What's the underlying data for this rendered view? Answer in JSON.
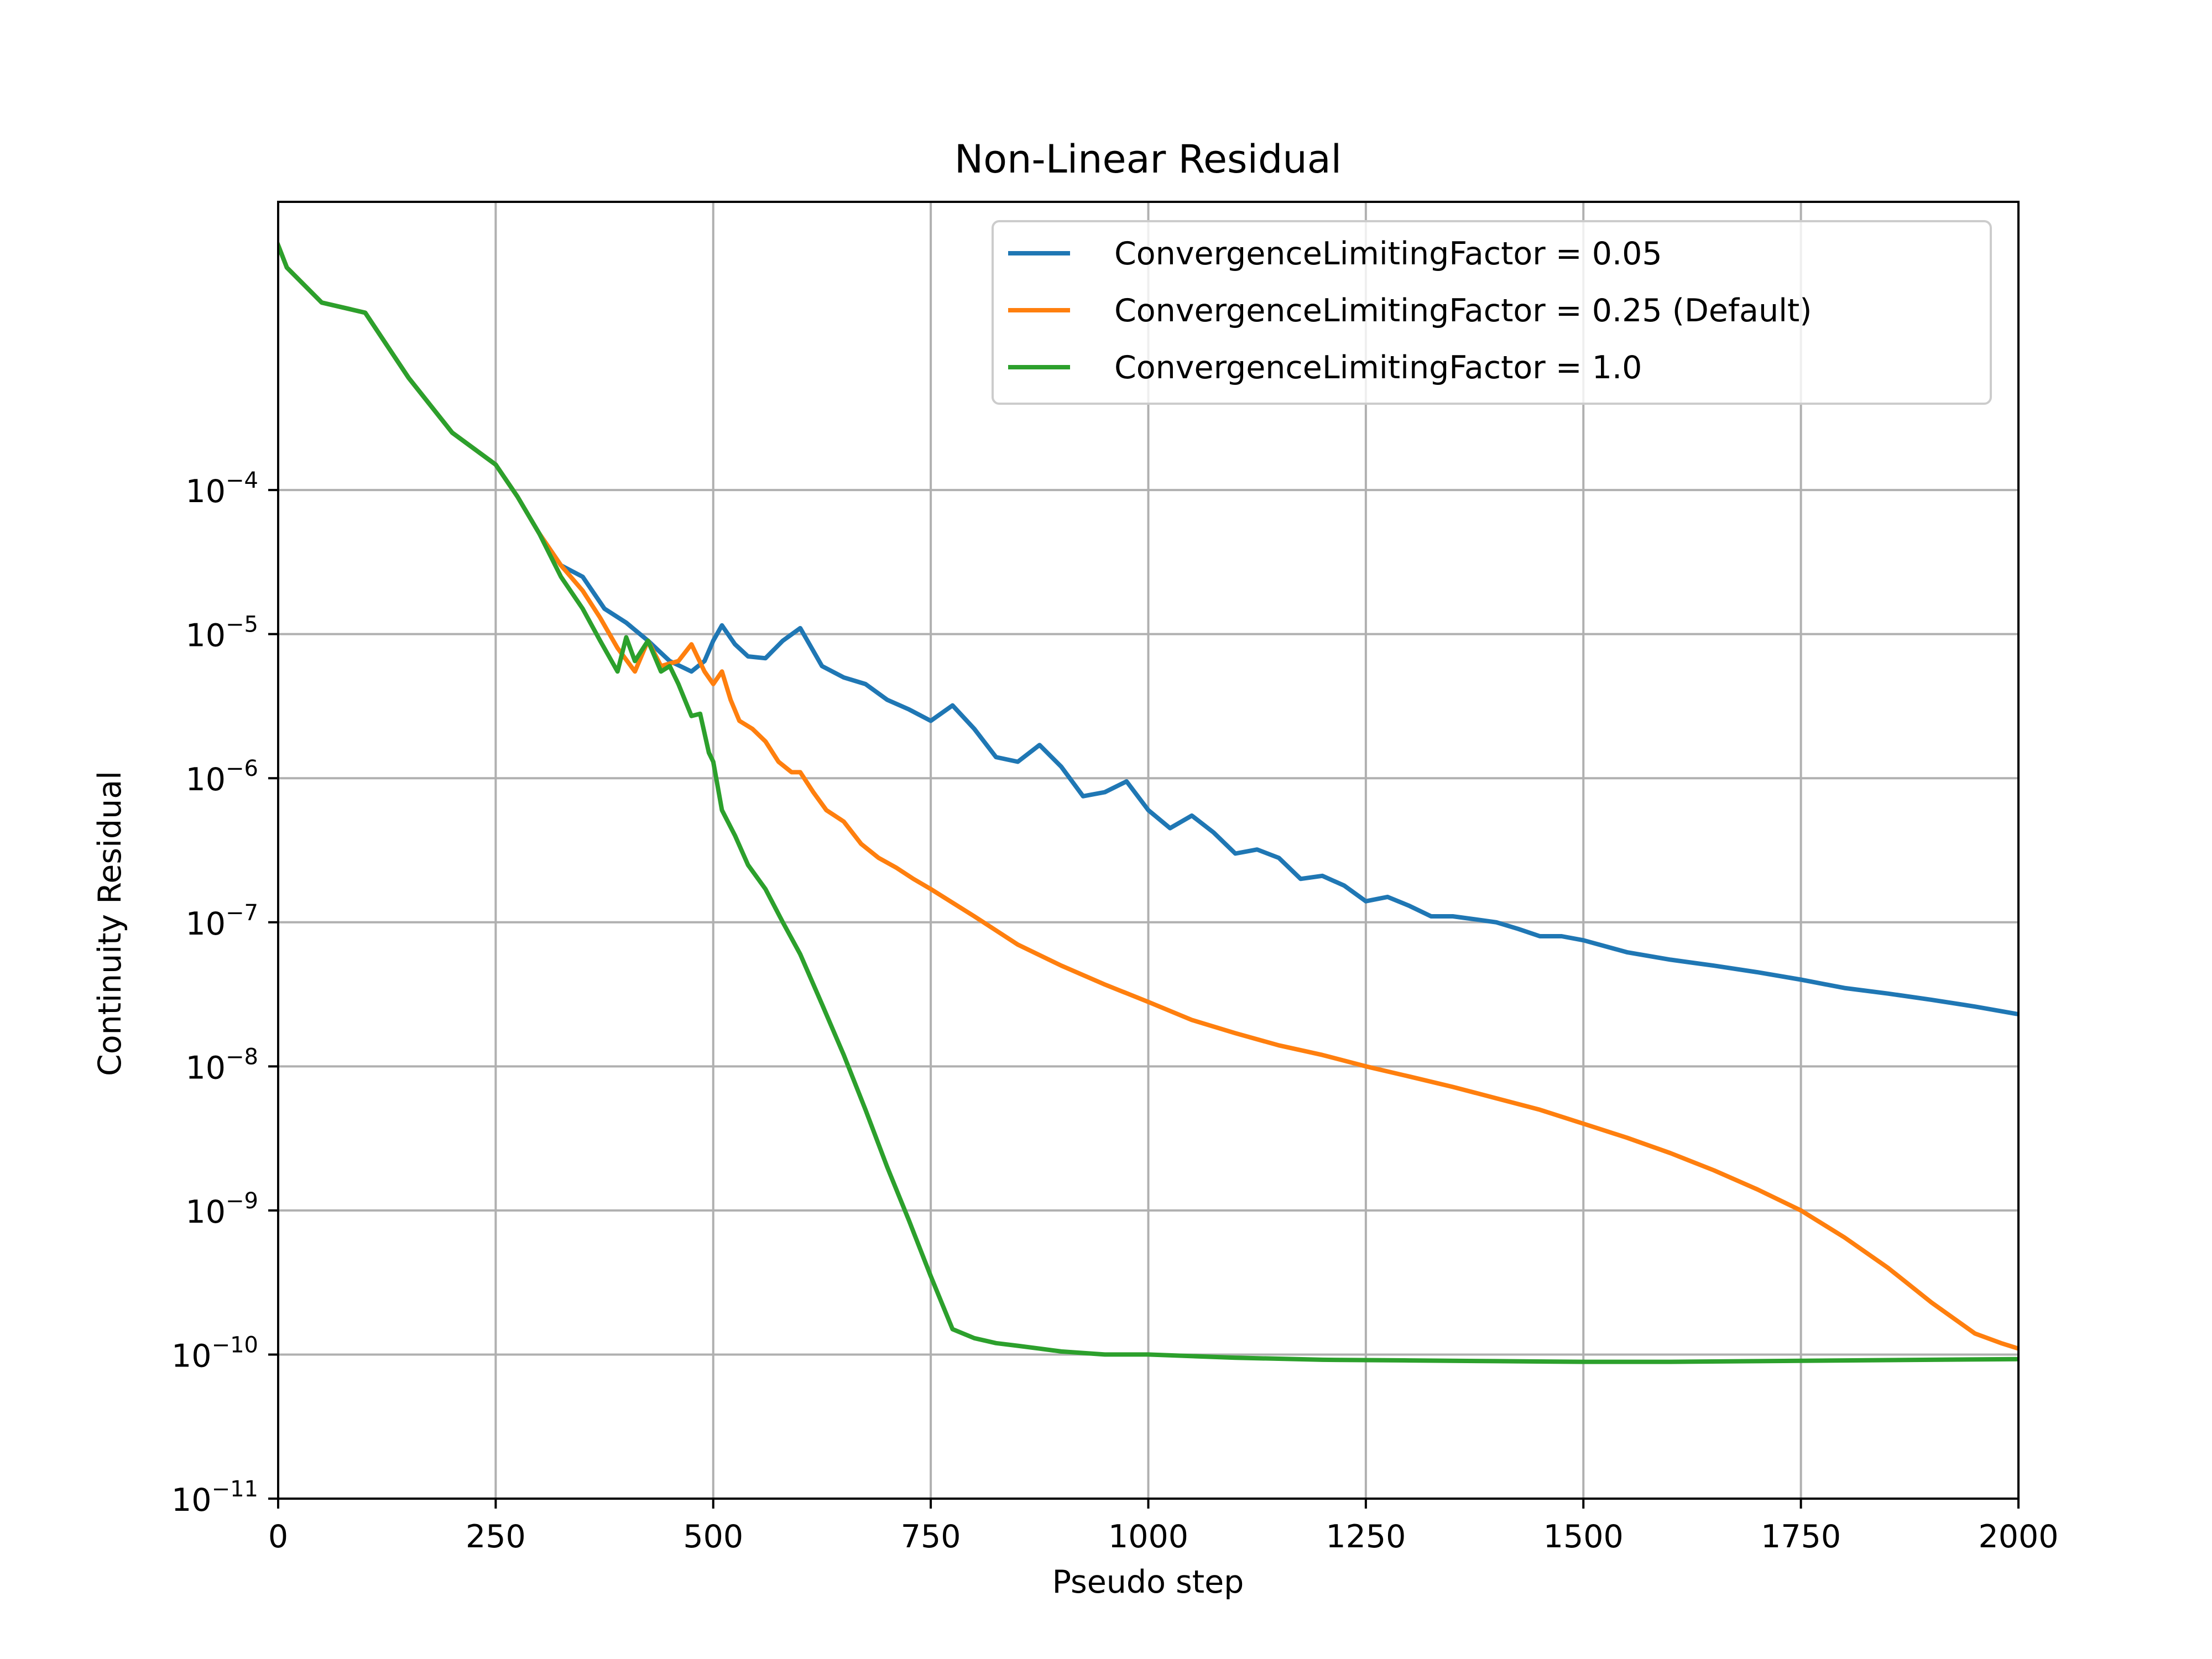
{
  "chart_data": {
    "type": "line",
    "title": "Non-Linear Residual",
    "xlabel": "Pseudo step",
    "ylabel": "Continuity Residual",
    "xlim": [
      0,
      2000
    ],
    "ylim": [
      1e-11,
      0.01
    ],
    "yscale": "log",
    "grid": true,
    "legend_position": "top-right",
    "x_ticks": [
      0,
      250,
      500,
      750,
      1000,
      1250,
      1500,
      1750,
      2000
    ],
    "x_tick_labels": [
      "0",
      "250",
      "500",
      "750",
      "1000",
      "1250",
      "1500",
      "1750",
      "2000"
    ],
    "y_ticks": [
      -11,
      -10,
      -9,
      -8,
      -7,
      -6,
      -5,
      -4
    ],
    "y_tick_labels": [
      {
        "base": "10",
        "exp": "−11"
      },
      {
        "base": "10",
        "exp": "−10"
      },
      {
        "base": "10",
        "exp": "−9"
      },
      {
        "base": "10",
        "exp": "−8"
      },
      {
        "base": "10",
        "exp": "−7"
      },
      {
        "base": "10",
        "exp": "−6"
      },
      {
        "base": "10",
        "exp": "−5"
      },
      {
        "base": "10",
        "exp": "−4"
      }
    ],
    "series": [
      {
        "name": "ConvergenceLimitingFactor = 0.05",
        "color": "#1f77b4",
        "x": [
          0,
          10,
          50,
          100,
          150,
          200,
          250,
          275,
          300,
          325,
          350,
          375,
          400,
          425,
          450,
          475,
          490,
          500,
          510,
          525,
          540,
          560,
          580,
          600,
          625,
          650,
          675,
          700,
          725,
          750,
          775,
          800,
          825,
          850,
          875,
          900,
          925,
          950,
          975,
          1000,
          1025,
          1050,
          1075,
          1100,
          1125,
          1150,
          1175,
          1200,
          1225,
          1250,
          1275,
          1300,
          1325,
          1350,
          1375,
          1400,
          1425,
          1450,
          1475,
          1500,
          1550,
          1600,
          1650,
          1700,
          1750,
          1800,
          1850,
          1900,
          1950,
          2000
        ],
        "y": [
          0.005,
          0.0035,
          0.002,
          0.0017,
          0.0006,
          0.00025,
          0.00015,
          9e-05,
          5e-05,
          3e-05,
          2.5e-05,
          1.5e-05,
          1.2e-05,
          9e-06,
          6.5e-06,
          5.5e-06,
          6.5e-06,
          9e-06,
          1.15e-05,
          8.5e-06,
          7e-06,
          6.8e-06,
          9e-06,
          1.1e-05,
          6e-06,
          5e-06,
          4.5e-06,
          3.5e-06,
          3e-06,
          2.5e-06,
          3.2e-06,
          2.2e-06,
          1.4e-06,
          1.3e-06,
          1.7e-06,
          1.2e-06,
          7.5e-07,
          8e-07,
          9.5e-07,
          6e-07,
          4.5e-07,
          5.5e-07,
          4.2e-07,
          3e-07,
          3.2e-07,
          2.8e-07,
          2e-07,
          2.1e-07,
          1.8e-07,
          1.4e-07,
          1.5e-07,
          1.3e-07,
          1.1e-07,
          1.1e-07,
          1.05e-07,
          1e-07,
          9e-08,
          8e-08,
          8e-08,
          7.5e-08,
          6.2e-08,
          5.5e-08,
          5e-08,
          4.5e-08,
          4e-08,
          3.5e-08,
          3.2e-08,
          2.9e-08,
          2.6e-08,
          2.3e-08
        ]
      },
      {
        "name": "ConvergenceLimitingFactor = 0.25 (Default)",
        "color": "#ff7f0e",
        "x": [
          0,
          10,
          50,
          100,
          150,
          200,
          250,
          275,
          300,
          325,
          350,
          370,
          390,
          410,
          425,
          440,
          460,
          475,
          490,
          500,
          510,
          520,
          530,
          545,
          560,
          575,
          590,
          600,
          615,
          630,
          650,
          670,
          690,
          710,
          730,
          750,
          800,
          850,
          900,
          950,
          1000,
          1050,
          1100,
          1150,
          1200,
          1250,
          1300,
          1350,
          1400,
          1450,
          1500,
          1550,
          1600,
          1650,
          1700,
          1750,
          1800,
          1850,
          1900,
          1950,
          1980,
          2000
        ],
        "y": [
          0.005,
          0.0035,
          0.002,
          0.0017,
          0.0006,
          0.00025,
          0.00015,
          9e-05,
          5e-05,
          3e-05,
          2e-05,
          1.3e-05,
          8e-06,
          5.5e-06,
          9e-06,
          6e-06,
          6.5e-06,
          8.5e-06,
          5.5e-06,
          4.5e-06,
          5.5e-06,
          3.5e-06,
          2.5e-06,
          2.2e-06,
          1.8e-06,
          1.3e-06,
          1.1e-06,
          1.1e-06,
          8e-07,
          6e-07,
          5e-07,
          3.5e-07,
          2.8e-07,
          2.4e-07,
          2e-07,
          1.7e-07,
          1.1e-07,
          7e-08,
          5e-08,
          3.7e-08,
          2.8e-08,
          2.1e-08,
          1.7e-08,
          1.4e-08,
          1.2e-08,
          1e-08,
          8.5e-09,
          7.2e-09,
          6e-09,
          5e-09,
          4e-09,
          3.2e-09,
          2.5e-09,
          1.9e-09,
          1.4e-09,
          1e-09,
          6.5e-10,
          4e-10,
          2.3e-10,
          1.4e-10,
          1.2e-10,
          1.1e-10
        ]
      },
      {
        "name": "ConvergenceLimitingFactor = 1.0",
        "color": "#2ca02c",
        "x": [
          0,
          10,
          50,
          100,
          150,
          200,
          250,
          275,
          300,
          325,
          350,
          370,
          390,
          400,
          410,
          425,
          440,
          450,
          460,
          475,
          485,
          495,
          500,
          510,
          525,
          540,
          560,
          580,
          600,
          625,
          650,
          675,
          700,
          725,
          750,
          775,
          800,
          825,
          850,
          875,
          900,
          950,
          1000,
          1100,
          1200,
          1300,
          1400,
          1500,
          1600,
          1700,
          1800,
          1900,
          2000
        ],
        "y": [
          0.005,
          0.0035,
          0.002,
          0.0017,
          0.0006,
          0.00025,
          0.00015,
          9e-05,
          5e-05,
          2.5e-05,
          1.5e-05,
          9e-06,
          5.5e-06,
          9.5e-06,
          6.5e-06,
          9e-06,
          5.5e-06,
          6e-06,
          4.5e-06,
          2.7e-06,
          2.8e-06,
          1.5e-06,
          1.3e-06,
          6e-07,
          4e-07,
          2.5e-07,
          1.7e-07,
          1e-07,
          6e-08,
          2.7e-08,
          1.2e-08,
          5e-09,
          2e-09,
          8.5e-10,
          3.5e-10,
          1.5e-10,
          1.3e-10,
          1.2e-10,
          1.15e-10,
          1.1e-10,
          1.05e-10,
          1e-10,
          1e-10,
          9.5e-11,
          9.2e-11,
          9.1e-11,
          9e-11,
          8.9e-11,
          8.9e-11,
          9e-11,
          9.1e-11,
          9.2e-11,
          9.3e-11
        ]
      }
    ]
  }
}
